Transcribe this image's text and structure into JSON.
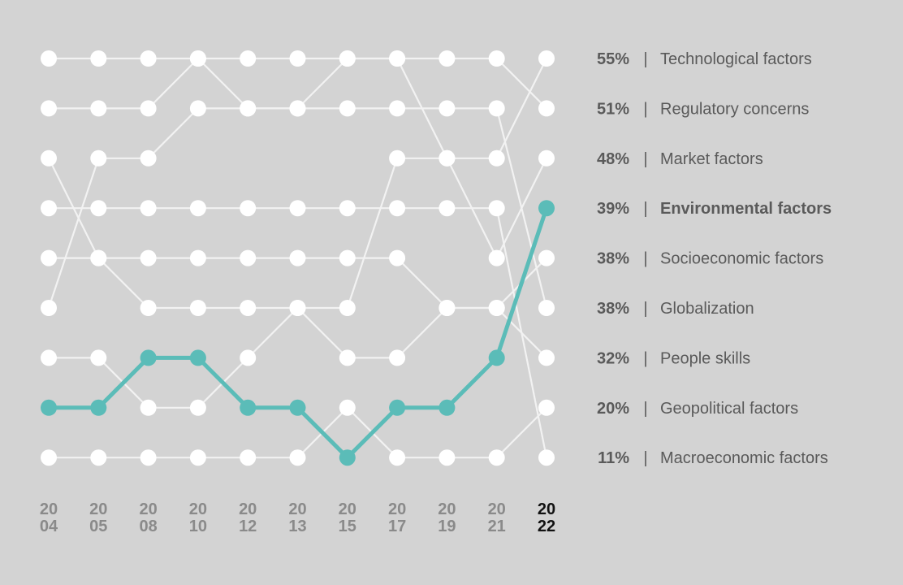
{
  "chart_data": {
    "type": "line",
    "title": "",
    "x": [
      {
        "top": "20",
        "bottom": "04"
      },
      {
        "top": "20",
        "bottom": "05"
      },
      {
        "top": "20",
        "bottom": "08"
      },
      {
        "top": "20",
        "bottom": "10"
      },
      {
        "top": "20",
        "bottom": "12"
      },
      {
        "top": "20",
        "bottom": "13"
      },
      {
        "top": "20",
        "bottom": "15"
      },
      {
        "top": "20",
        "bottom": "17"
      },
      {
        "top": "20",
        "bottom": "19"
      },
      {
        "top": "20",
        "bottom": "21"
      },
      {
        "top": "20",
        "bottom": "22"
      }
    ],
    "highlight_color": "#5bbcb8",
    "background_color": "#d3d3d3",
    "line_color": "#f2f2f2",
    "series": [
      {
        "name": "Technological factors",
        "percent": "55%",
        "ranks": [
          1,
          1,
          1,
          1,
          2,
          2,
          1,
          1,
          3,
          3,
          1
        ]
      },
      {
        "name": "Regulatory concerns",
        "percent": "51%",
        "ranks": [
          2,
          2,
          2,
          1,
          1,
          1,
          1,
          1,
          1,
          1,
          2
        ]
      },
      {
        "name": "Market factors",
        "percent": "48%",
        "ranks": [
          3,
          5,
          6,
          6,
          6,
          6,
          6,
          3,
          3,
          5,
          3
        ]
      },
      {
        "name": "Environmental factors",
        "percent": "39%",
        "ranks": [
          8,
          8,
          7,
          7,
          8,
          8,
          9,
          8,
          8,
          7,
          4
        ],
        "highlight": true
      },
      {
        "name": "Socioeconomic factors",
        "percent": "38%",
        "ranks": [
          5,
          5,
          5,
          5,
          5,
          5,
          5,
          5,
          6,
          6,
          5
        ]
      },
      {
        "name": "Globalization",
        "percent": "38%",
        "ranks": [
          6,
          3,
          3,
          2,
          2,
          2,
          2,
          2,
          2,
          2,
          6
        ]
      },
      {
        "name": "People skills",
        "percent": "32%",
        "ranks": [
          7,
          7,
          8,
          8,
          7,
          6,
          7,
          7,
          6,
          6,
          7
        ]
      },
      {
        "name": "Geopolitical factors",
        "percent": "20%",
        "ranks": [
          9,
          9,
          9,
          9,
          9,
          9,
          8,
          9,
          9,
          9,
          8
        ]
      },
      {
        "name": "Macroeconomic factors",
        "percent": "11%",
        "ranks": [
          4,
          4,
          4,
          4,
          4,
          4,
          4,
          4,
          4,
          4,
          9
        ]
      }
    ]
  }
}
